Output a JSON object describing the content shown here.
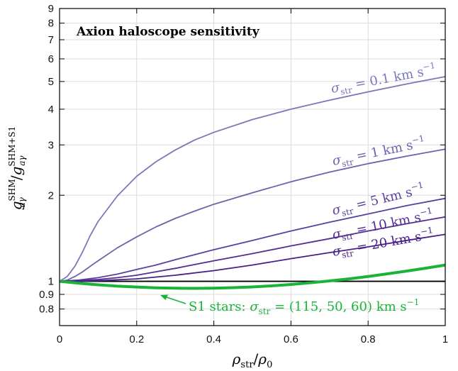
{
  "chart_data": {
    "type": "line",
    "title": "Axion haloscope sensitivity",
    "xlabel": {
      "base": "ρ",
      "sub": "str",
      "sep": "/",
      "base2": "ρ",
      "sub2": "0"
    },
    "ylabel": {
      "num": "g",
      "num_sub": "aγ",
      "num_sup": "SHM",
      "sep": "/",
      "den": "g",
      "den_sub": "aγ",
      "den_sup": "SHM+S1"
    },
    "xlim": [
      0,
      1
    ],
    "ylim": [
      0.7,
      9
    ],
    "yscale": "log",
    "grid": true,
    "xticks": [
      {
        "value": 0,
        "label": "0"
      },
      {
        "value": 0.2,
        "label": "0.2"
      },
      {
        "value": 0.4,
        "label": "0.4"
      },
      {
        "value": 0.6,
        "label": "0.6"
      },
      {
        "value": 0.8,
        "label": "0.8"
      },
      {
        "value": 1,
        "label": "1"
      }
    ],
    "yticks": [
      {
        "value": 0.8,
        "label": "0.8"
      },
      {
        "value": 0.9,
        "label": "0.9"
      },
      {
        "value": 1,
        "label": "1"
      },
      {
        "value": 2,
        "label": "2"
      },
      {
        "value": 3,
        "label": "3"
      },
      {
        "value": 4,
        "label": "4"
      },
      {
        "value": 5,
        "label": "5"
      },
      {
        "value": 6,
        "label": "6"
      },
      {
        "value": 7,
        "label": "7"
      },
      {
        "value": 8,
        "label": "8"
      },
      {
        "value": 9,
        "label": "9"
      }
    ],
    "reference_line": {
      "y": 1,
      "color": "#000000"
    },
    "series": [
      {
        "name": "σstr = 0.1 km s−1",
        "label": {
          "sym": "σ",
          "sub": "str",
          "rest": " = 0.1 km s",
          "sup": "−1"
        },
        "color": "#7a78b8",
        "width": 1.8,
        "x": [
          0,
          0.02,
          0.04,
          0.06,
          0.08,
          0.1,
          0.15,
          0.2,
          0.25,
          0.3,
          0.35,
          0.4,
          0.5,
          0.6,
          0.7,
          0.8,
          0.9,
          1.0
        ],
        "y": [
          1.0,
          1.04,
          1.13,
          1.27,
          1.45,
          1.62,
          1.99,
          2.33,
          2.62,
          2.88,
          3.12,
          3.32,
          3.68,
          4.0,
          4.3,
          4.6,
          4.9,
          5.2
        ]
      },
      {
        "name": "σstr = 1 km s−1",
        "label": {
          "sym": "σ",
          "sub": "str",
          "rest": " = 1 km s",
          "sup": "−1"
        },
        "color": "#6a64ad",
        "width": 1.8,
        "x": [
          0,
          0.02,
          0.04,
          0.06,
          0.08,
          0.1,
          0.15,
          0.2,
          0.25,
          0.3,
          0.35,
          0.4,
          0.5,
          0.6,
          0.7,
          0.8,
          0.9,
          1.0
        ],
        "y": [
          1.0,
          1.01,
          1.04,
          1.08,
          1.13,
          1.18,
          1.31,
          1.43,
          1.55,
          1.66,
          1.76,
          1.86,
          2.04,
          2.23,
          2.41,
          2.58,
          2.74,
          2.9
        ]
      },
      {
        "name": "σstr = 5 km s−1",
        "label": {
          "sym": "σ",
          "sub": "str",
          "rest": " = 5 km s",
          "sup": "−1"
        },
        "color": "#5c3f9e",
        "width": 1.8,
        "x": [
          0,
          0.05,
          0.1,
          0.15,
          0.2,
          0.25,
          0.3,
          0.4,
          0.5,
          0.6,
          0.7,
          0.8,
          0.9,
          1.0
        ],
        "y": [
          1.0,
          1.01,
          1.03,
          1.06,
          1.1,
          1.14,
          1.19,
          1.29,
          1.39,
          1.5,
          1.61,
          1.72,
          1.84,
          1.95
        ]
      },
      {
        "name": "σstr = 10 km s−1",
        "label": {
          "sym": "σ",
          "sub": "str",
          "rest": " = 10 km s",
          "sup": "−1"
        },
        "color": "#522e92",
        "width": 1.8,
        "x": [
          0,
          0.05,
          0.1,
          0.15,
          0.2,
          0.25,
          0.3,
          0.4,
          0.5,
          0.6,
          0.7,
          0.8,
          0.9,
          1.0
        ],
        "y": [
          1.0,
          1.005,
          1.015,
          1.03,
          1.05,
          1.08,
          1.11,
          1.18,
          1.25,
          1.33,
          1.41,
          1.5,
          1.59,
          1.68
        ]
      },
      {
        "name": "σstr = 20 km s−1",
        "label": {
          "sym": "σ",
          "sub": "str",
          "rest": " = 20 km s",
          "sup": "−1"
        },
        "color": "#4a1f86",
        "width": 1.8,
        "x": [
          0,
          0.05,
          0.1,
          0.2,
          0.3,
          0.4,
          0.5,
          0.6,
          0.7,
          0.8,
          0.9,
          1.0
        ],
        "y": [
          1.0,
          1.0,
          1.005,
          1.02,
          1.05,
          1.09,
          1.14,
          1.2,
          1.26,
          1.32,
          1.39,
          1.46
        ]
      },
      {
        "name": "S1 stars: σstr = (115, 50, 60) km s−1",
        "label": {
          "pre": "S1 stars: ",
          "sym": "σ",
          "sub": "str",
          "rest": " = (115, 50, 60) km s",
          "sup": "−1"
        },
        "color": "#19b33a",
        "width": 4,
        "x": [
          0,
          0.05,
          0.1,
          0.15,
          0.2,
          0.25,
          0.3,
          0.35,
          0.4,
          0.45,
          0.5,
          0.55,
          0.6,
          0.65,
          0.7,
          0.75,
          0.8,
          0.85,
          0.9,
          0.95,
          1.0
        ],
        "y": [
          1.0,
          0.985,
          0.972,
          0.962,
          0.955,
          0.949,
          0.946,
          0.945,
          0.946,
          0.95,
          0.956,
          0.964,
          0.975,
          0.988,
          1.003,
          1.02,
          1.04,
          1.062,
          1.086,
          1.112,
          1.14
        ]
      }
    ]
  }
}
